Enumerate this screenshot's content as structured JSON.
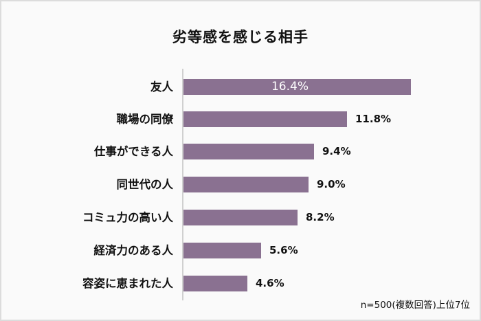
{
  "title": "劣等感を感じる相手",
  "note": "n=500(複数回答)上位7位",
  "colors": {
    "bar": "#8a7191",
    "axis": "#d0d0d0",
    "background": "#fafafa",
    "border": "#dcdcdc"
  },
  "rows": [
    {
      "label": "友人",
      "value": 16.4,
      "display": "16.4%"
    },
    {
      "label": "職場の同僚",
      "value": 11.8,
      "display": "11.8%"
    },
    {
      "label": "仕事ができる人",
      "value": 9.4,
      "display": "9.4%"
    },
    {
      "label": "同世代の人",
      "value": 9.0,
      "display": "9.0%"
    },
    {
      "label": "コミュ力の高い人",
      "value": 8.2,
      "display": "8.2%"
    },
    {
      "label": "経済力のある人",
      "value": 5.6,
      "display": "5.6%"
    },
    {
      "label": "容姿に恵まれた人",
      "value": 4.6,
      "display": "4.6%"
    }
  ],
  "chart_data": {
    "type": "bar",
    "orientation": "horizontal",
    "title": "劣等感を感じる相手",
    "categories": [
      "友人",
      "職場の同僚",
      "仕事ができる人",
      "同世代の人",
      "コミュ力の高い人",
      "経済力のある人",
      "容姿に恵まれた人"
    ],
    "values": [
      16.4,
      11.8,
      9.4,
      9.0,
      8.2,
      5.6,
      4.6
    ],
    "unit": "%",
    "xlabel": "",
    "ylabel": "",
    "annotation": "n=500(複数回答)上位7位",
    "grid": false,
    "legend": null,
    "data_labels": true
  }
}
